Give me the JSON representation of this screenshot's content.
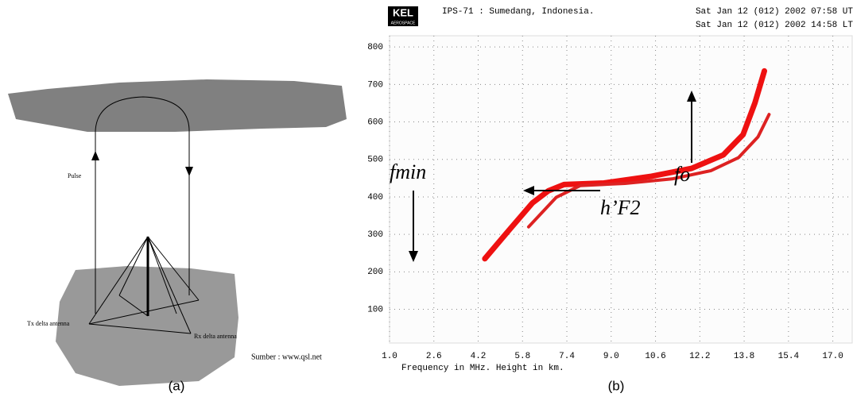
{
  "panel_a": {
    "pulse": "Pulse",
    "tx": "Tx delta antenna",
    "rx": "Rx delta antenna",
    "source": "Sumber : www.qsl.net",
    "caption": "(a)"
  },
  "chart_data": {
    "type": "line",
    "logo": "KEL",
    "logo_sub": "AEROSPACE",
    "title": "IPS-71 : Sumedang, Indonesia.",
    "time_ut": "Sat Jan 12 (012) 2002 07:58 UT",
    "time_lt": "Sat Jan 12 (012) 2002 14:58 LT",
    "xlabel": "Frequency in MHz. Height in km.",
    "caption": "(b)",
    "xlim": [
      1.0,
      17.7
    ],
    "ylim": [
      10,
      830
    ],
    "xticks": [
      {
        "value": 1,
        "label": "1.0"
      },
      2.6,
      4.2,
      5.8,
      7.4,
      {
        "value": 9,
        "label": "9.0"
      },
      10.6,
      12.2,
      13.8,
      15.4,
      {
        "value": 17,
        "label": "17.0"
      }
    ],
    "yticks": [
      100,
      200,
      300,
      400,
      500,
      600,
      700,
      800
    ],
    "grid": true,
    "series": [
      {
        "color": "#ee1111",
        "x": [
          4.44,
          5.3,
          6.16,
          6.73,
          7.3,
          8.74,
          10.46,
          11.9,
          13.05,
          13.76,
          14.19,
          14.53
        ],
        "y": [
          235,
          310,
          384,
          416,
          433,
          437,
          455,
          476,
          512,
          566,
          651,
          736
        ]
      },
      {
        "color": "#dd2222",
        "x": [
          6.02,
          7.02,
          7.88,
          9.5,
          11.2,
          12.6,
          13.6,
          14.3,
          14.7
        ],
        "y": [
          320,
          399,
          430,
          436,
          448,
          470,
          505,
          560,
          620
        ]
      }
    ],
    "annotations": {
      "fmin": "fmin",
      "fo": "fo",
      "hf2": "h’F2"
    }
  }
}
